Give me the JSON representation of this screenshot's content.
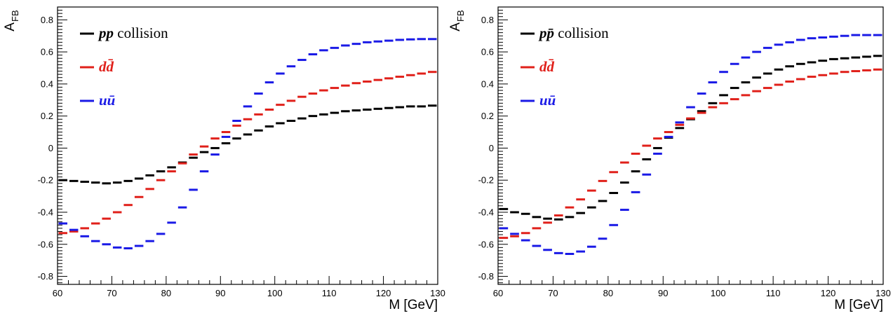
{
  "chart_data": [
    {
      "type": "step",
      "ylabel": "A",
      "ylabel_sub": "FB",
      "xlabel": "M [GeV]",
      "xlim": [
        60,
        130
      ],
      "ylim": [
        -0.85,
        0.88
      ],
      "xticks": [
        60,
        70,
        80,
        90,
        100,
        110,
        120,
        130
      ],
      "yticks": [
        -0.8,
        -0.6,
        -0.4,
        -0.2,
        0,
        0.2,
        0.4,
        0.6,
        0.8
      ],
      "ytick_labels": [
        "-0.8",
        "-0.6",
        "-0.4",
        "-0.2",
        "0",
        "0.2",
        "0.4",
        "0.6",
        "0.8"
      ],
      "bin_width": 2,
      "x": [
        61,
        63,
        65,
        67,
        69,
        71,
        73,
        75,
        77,
        79,
        81,
        83,
        85,
        87,
        89,
        91,
        93,
        95,
        97,
        99,
        101,
        103,
        105,
        107,
        109,
        111,
        113,
        115,
        117,
        119,
        121,
        123,
        125,
        127,
        129
      ],
      "legend_position": "top-left",
      "series": [
        {
          "name": "pp collision",
          "name_parts": [
            "pp",
            " collision"
          ],
          "color": "#000000",
          "values": [
            -0.2,
            -0.205,
            -0.21,
            -0.215,
            -0.22,
            -0.215,
            -0.205,
            -0.19,
            -0.17,
            -0.145,
            -0.12,
            -0.09,
            -0.06,
            -0.025,
            0.0,
            0.03,
            0.06,
            0.085,
            0.11,
            0.135,
            0.155,
            0.17,
            0.185,
            0.2,
            0.21,
            0.22,
            0.23,
            0.235,
            0.24,
            0.245,
            0.25,
            0.255,
            0.26,
            0.26,
            0.265
          ]
        },
        {
          "name": "dd̄",
          "name_parts": [
            "dd̄"
          ],
          "color": "#e0201a",
          "values": [
            -0.53,
            -0.52,
            -0.5,
            -0.47,
            -0.44,
            -0.4,
            -0.355,
            -0.305,
            -0.255,
            -0.2,
            -0.145,
            -0.095,
            -0.04,
            0.01,
            0.06,
            0.1,
            0.14,
            0.18,
            0.21,
            0.24,
            0.27,
            0.295,
            0.32,
            0.34,
            0.36,
            0.375,
            0.39,
            0.405,
            0.415,
            0.425,
            0.435,
            0.445,
            0.455,
            0.465,
            0.475
          ]
        },
        {
          "name": "uū",
          "name_parts": [
            "uū"
          ],
          "color": "#1a1ae6",
          "values": [
            -0.47,
            -0.51,
            -0.55,
            -0.58,
            -0.6,
            -0.62,
            -0.625,
            -0.61,
            -0.58,
            -0.535,
            -0.465,
            -0.37,
            -0.26,
            -0.145,
            -0.04,
            0.07,
            0.17,
            0.26,
            0.34,
            0.41,
            0.465,
            0.51,
            0.55,
            0.585,
            0.61,
            0.625,
            0.64,
            0.65,
            0.66,
            0.665,
            0.67,
            0.675,
            0.678,
            0.68,
            0.68
          ]
        }
      ]
    },
    {
      "type": "step",
      "ylabel": "A",
      "ylabel_sub": "FB",
      "xlabel": "M [GeV]",
      "xlim": [
        60,
        130
      ],
      "ylim": [
        -0.85,
        0.88
      ],
      "xticks": [
        60,
        70,
        80,
        90,
        100,
        110,
        120,
        130
      ],
      "yticks": [
        -0.8,
        -0.6,
        -0.4,
        -0.2,
        0,
        0.2,
        0.4,
        0.6,
        0.8
      ],
      "ytick_labels": [
        "-0.8",
        "-0.6",
        "-0.4",
        "-0.2",
        "0",
        "0.2",
        "0.4",
        "0.6",
        "0.8"
      ],
      "bin_width": 2,
      "x": [
        61,
        63,
        65,
        67,
        69,
        71,
        73,
        75,
        77,
        79,
        81,
        83,
        85,
        87,
        89,
        91,
        93,
        95,
        97,
        99,
        101,
        103,
        105,
        107,
        109,
        111,
        113,
        115,
        117,
        119,
        121,
        123,
        125,
        127,
        129
      ],
      "legend_position": "top-left",
      "series": [
        {
          "name": "pp̄ collision",
          "name_parts": [
            "pp̄",
            " collision"
          ],
          "color": "#000000",
          "values": [
            -0.38,
            -0.4,
            -0.41,
            -0.43,
            -0.44,
            -0.445,
            -0.43,
            -0.405,
            -0.37,
            -0.33,
            -0.28,
            -0.215,
            -0.145,
            -0.07,
            0.0,
            0.065,
            0.125,
            0.18,
            0.23,
            0.28,
            0.33,
            0.375,
            0.41,
            0.44,
            0.465,
            0.49,
            0.51,
            0.525,
            0.535,
            0.545,
            0.555,
            0.56,
            0.565,
            0.57,
            0.575
          ]
        },
        {
          "name": "dd̄",
          "name_parts": [
            "dd̄"
          ],
          "color": "#e0201a",
          "values": [
            -0.56,
            -0.55,
            -0.53,
            -0.5,
            -0.465,
            -0.42,
            -0.37,
            -0.32,
            -0.265,
            -0.205,
            -0.15,
            -0.09,
            -0.035,
            0.015,
            0.06,
            0.1,
            0.145,
            0.185,
            0.22,
            0.255,
            0.28,
            0.305,
            0.33,
            0.355,
            0.375,
            0.395,
            0.415,
            0.43,
            0.445,
            0.455,
            0.465,
            0.475,
            0.48,
            0.485,
            0.49
          ]
        },
        {
          "name": "uū",
          "name_parts": [
            "uū"
          ],
          "color": "#1a1ae6",
          "values": [
            -0.5,
            -0.535,
            -0.575,
            -0.61,
            -0.635,
            -0.655,
            -0.66,
            -0.645,
            -0.615,
            -0.565,
            -0.48,
            -0.385,
            -0.275,
            -0.165,
            -0.035,
            0.07,
            0.16,
            0.255,
            0.34,
            0.41,
            0.475,
            0.525,
            0.565,
            0.6,
            0.625,
            0.645,
            0.66,
            0.675,
            0.685,
            0.69,
            0.695,
            0.7,
            0.705,
            0.705,
            0.705
          ]
        }
      ]
    }
  ]
}
